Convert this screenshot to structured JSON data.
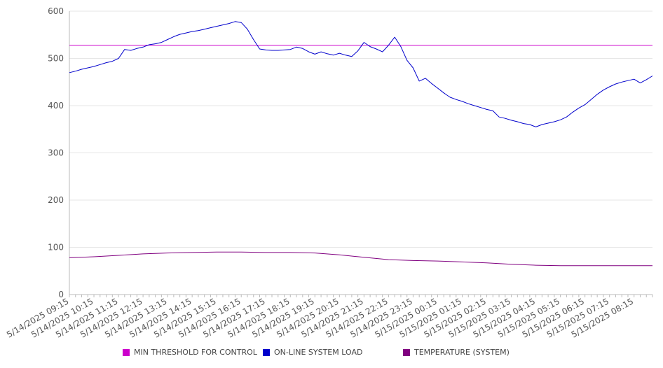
{
  "chart_data": {
    "type": "line",
    "title": "",
    "xlabel": "",
    "ylabel": "",
    "ylim": [
      0,
      600
    ],
    "yticks": [
      0,
      100,
      200,
      300,
      400,
      500,
      600
    ],
    "grid": "horizontal",
    "legend_position": "bottom",
    "x_labels": [
      "5/14/2025 09:15",
      "5/14/2025 10:15",
      "5/14/2025 11:15",
      "5/14/2025 12:15",
      "5/14/2025 13:15",
      "5/14/2025 14:15",
      "5/14/2025 15:15",
      "5/14/2025 16:15",
      "5/14/2025 17:15",
      "5/14/2025 18:15",
      "5/14/2025 19:15",
      "5/14/2025 20:15",
      "5/14/2025 21:15",
      "5/14/2025 22:15",
      "5/14/2025 23:15",
      "5/15/2025 00:15",
      "5/15/2025 01:15",
      "5/15/2025 02:15",
      "5/15/2025 03:15",
      "5/15/2025 04:15",
      "5/15/2025 05:15",
      "5/15/2025 06:15",
      "5/15/2025 07:15",
      "5/15/2025 08:15"
    ],
    "series": [
      {
        "name": "MIN THRESHOLD FOR CONTROL",
        "color": "#cc00cc",
        "kind": "constant",
        "value": 528
      },
      {
        "name": "ON-LINE SYSTEM LOAD",
        "color": "#0000cc",
        "values": [
          {
            "x": "5/14/2025 09:15",
            "y": 470
          },
          {
            "x": "5/14/2025 09:30",
            "y": 473
          },
          {
            "x": "5/14/2025 09:45",
            "y": 477
          },
          {
            "x": "5/14/2025 10:00",
            "y": 480
          },
          {
            "x": "5/14/2025 10:15",
            "y": 483
          },
          {
            "x": "5/14/2025 10:30",
            "y": 487
          },
          {
            "x": "5/14/2025 10:45",
            "y": 491
          },
          {
            "x": "5/14/2025 11:00",
            "y": 494
          },
          {
            "x": "5/14/2025 11:15",
            "y": 500
          },
          {
            "x": "5/14/2025 11:30",
            "y": 519
          },
          {
            "x": "5/14/2025 11:45",
            "y": 517
          },
          {
            "x": "5/14/2025 12:00",
            "y": 521
          },
          {
            "x": "5/14/2025 12:15",
            "y": 524
          },
          {
            "x": "5/14/2025 12:30",
            "y": 529
          },
          {
            "x": "5/14/2025 12:45",
            "y": 531
          },
          {
            "x": "5/14/2025 13:00",
            "y": 534
          },
          {
            "x": "5/14/2025 13:15",
            "y": 540
          },
          {
            "x": "5/14/2025 13:30",
            "y": 546
          },
          {
            "x": "5/14/2025 13:45",
            "y": 551
          },
          {
            "x": "5/14/2025 14:00",
            "y": 554
          },
          {
            "x": "5/14/2025 14:15",
            "y": 557
          },
          {
            "x": "5/14/2025 14:30",
            "y": 559
          },
          {
            "x": "5/14/2025 14:45",
            "y": 562
          },
          {
            "x": "5/14/2025 15:00",
            "y": 565
          },
          {
            "x": "5/14/2025 15:15",
            "y": 568
          },
          {
            "x": "5/14/2025 15:30",
            "y": 571
          },
          {
            "x": "5/14/2025 15:45",
            "y": 574
          },
          {
            "x": "5/14/2025 16:00",
            "y": 578
          },
          {
            "x": "5/14/2025 16:15",
            "y": 576
          },
          {
            "x": "5/14/2025 16:30",
            "y": 562
          },
          {
            "x": "5/14/2025 16:45",
            "y": 540
          },
          {
            "x": "5/14/2025 17:00",
            "y": 520
          },
          {
            "x": "5/14/2025 17:15",
            "y": 518
          },
          {
            "x": "5/14/2025 17:30",
            "y": 517
          },
          {
            "x": "5/14/2025 17:45",
            "y": 517
          },
          {
            "x": "5/14/2025 18:00",
            "y": 518
          },
          {
            "x": "5/14/2025 18:15",
            "y": 519
          },
          {
            "x": "5/14/2025 18:30",
            "y": 524
          },
          {
            "x": "5/14/2025 18:45",
            "y": 521
          },
          {
            "x": "5/14/2025 19:00",
            "y": 514
          },
          {
            "x": "5/14/2025 19:15",
            "y": 509
          },
          {
            "x": "5/14/2025 19:30",
            "y": 514
          },
          {
            "x": "5/14/2025 19:45",
            "y": 510
          },
          {
            "x": "5/14/2025 20:00",
            "y": 507
          },
          {
            "x": "5/14/2025 20:15",
            "y": 511
          },
          {
            "x": "5/14/2025 20:30",
            "y": 507
          },
          {
            "x": "5/14/2025 20:45",
            "y": 504
          },
          {
            "x": "5/14/2025 21:00",
            "y": 516
          },
          {
            "x": "5/14/2025 21:15",
            "y": 534
          },
          {
            "x": "5/14/2025 21:30",
            "y": 525
          },
          {
            "x": "5/14/2025 21:45",
            "y": 520
          },
          {
            "x": "5/14/2025 22:00",
            "y": 514
          },
          {
            "x": "5/14/2025 22:15",
            "y": 528
          },
          {
            "x": "5/14/2025 22:30",
            "y": 545
          },
          {
            "x": "5/14/2025 22:45",
            "y": 525
          },
          {
            "x": "5/14/2025 23:00",
            "y": 496
          },
          {
            "x": "5/14/2025 23:15",
            "y": 480
          },
          {
            "x": "5/14/2025 23:30",
            "y": 452
          },
          {
            "x": "5/14/2025 23:45",
            "y": 458
          },
          {
            "x": "5/15/2025 00:00",
            "y": 447
          },
          {
            "x": "5/15/2025 00:15",
            "y": 437
          },
          {
            "x": "5/15/2025 00:30",
            "y": 427
          },
          {
            "x": "5/15/2025 00:45",
            "y": 418
          },
          {
            "x": "5/15/2025 01:00",
            "y": 413
          },
          {
            "x": "5/15/2025 01:15",
            "y": 409
          },
          {
            "x": "5/15/2025 01:30",
            "y": 404
          },
          {
            "x": "5/15/2025 01:45",
            "y": 400
          },
          {
            "x": "5/15/2025 02:00",
            "y": 396
          },
          {
            "x": "5/15/2025 02:15",
            "y": 392
          },
          {
            "x": "5/15/2025 02:30",
            "y": 389
          },
          {
            "x": "5/15/2025 02:45",
            "y": 376
          },
          {
            "x": "5/15/2025 03:00",
            "y": 373
          },
          {
            "x": "5/15/2025 03:15",
            "y": 369
          },
          {
            "x": "5/15/2025 03:30",
            "y": 366
          },
          {
            "x": "5/15/2025 03:45",
            "y": 362
          },
          {
            "x": "5/15/2025 04:00",
            "y": 360
          },
          {
            "x": "5/15/2025 04:15",
            "y": 355
          },
          {
            "x": "5/15/2025 04:30",
            "y": 360
          },
          {
            "x": "5/15/2025 04:45",
            "y": 363
          },
          {
            "x": "5/15/2025 05:00",
            "y": 366
          },
          {
            "x": "5/15/2025 05:15",
            "y": 370
          },
          {
            "x": "5/15/2025 05:30",
            "y": 376
          },
          {
            "x": "5/15/2025 05:45",
            "y": 386
          },
          {
            "x": "5/15/2025 06:00",
            "y": 395
          },
          {
            "x": "5/15/2025 06:15",
            "y": 402
          },
          {
            "x": "5/15/2025 06:30",
            "y": 413
          },
          {
            "x": "5/15/2025 06:45",
            "y": 424
          },
          {
            "x": "5/15/2025 07:00",
            "y": 433
          },
          {
            "x": "5/15/2025 07:15",
            "y": 440
          },
          {
            "x": "5/15/2025 07:30",
            "y": 446
          },
          {
            "x": "5/15/2025 07:45",
            "y": 450
          },
          {
            "x": "5/15/2025 08:00",
            "y": 453
          },
          {
            "x": "5/15/2025 08:15",
            "y": 456
          },
          {
            "x": "5/15/2025 08:30",
            "y": 448
          },
          {
            "x": "5/15/2025 08:45",
            "y": 455
          },
          {
            "x": "5/15/2025 09:00",
            "y": 463
          }
        ]
      },
      {
        "name": "TEMPERATURE (SYSTEM)",
        "color": "#800080",
        "values": [
          {
            "x": "5/14/2025 09:15",
            "y": 78
          },
          {
            "x": "5/14/2025 10:15",
            "y": 80
          },
          {
            "x": "5/14/2025 11:15",
            "y": 83
          },
          {
            "x": "5/14/2025 12:15",
            "y": 86
          },
          {
            "x": "5/14/2025 13:15",
            "y": 88
          },
          {
            "x": "5/14/2025 14:15",
            "y": 89
          },
          {
            "x": "5/14/2025 15:15",
            "y": 90
          },
          {
            "x": "5/14/2025 16:15",
            "y": 90
          },
          {
            "x": "5/14/2025 17:15",
            "y": 89
          },
          {
            "x": "5/14/2025 18:15",
            "y": 89
          },
          {
            "x": "5/14/2025 19:15",
            "y": 88
          },
          {
            "x": "5/14/2025 20:15",
            "y": 84
          },
          {
            "x": "5/14/2025 21:15",
            "y": 79
          },
          {
            "x": "5/14/2025 22:15",
            "y": 74
          },
          {
            "x": "5/14/2025 23:15",
            "y": 72
          },
          {
            "x": "5/15/2025 00:15",
            "y": 71
          },
          {
            "x": "5/15/2025 01:15",
            "y": 69
          },
          {
            "x": "5/15/2025 02:15",
            "y": 67
          },
          {
            "x": "5/15/2025 03:15",
            "y": 64
          },
          {
            "x": "5/15/2025 04:15",
            "y": 62
          },
          {
            "x": "5/15/2025 05:15",
            "y": 61
          },
          {
            "x": "5/15/2025 06:15",
            "y": 61
          },
          {
            "x": "5/15/2025 07:15",
            "y": 61
          },
          {
            "x": "5/15/2025 08:15",
            "y": 61
          },
          {
            "x": "5/15/2025 09:00",
            "y": 61
          }
        ]
      }
    ]
  }
}
